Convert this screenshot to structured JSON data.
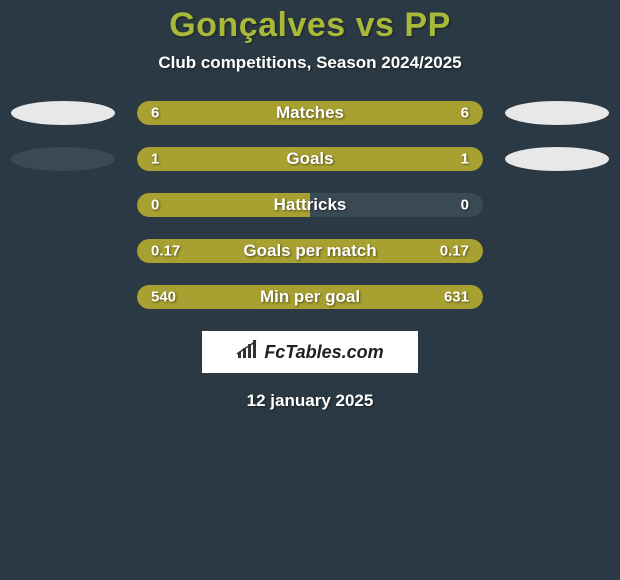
{
  "header": {
    "title": "Gonçalves vs PP",
    "subtitle": "Club competitions, Season 2024/2025"
  },
  "colors": {
    "background": "#2a3943",
    "accent": "#a8b838",
    "bar_fill": "#a8a030",
    "bar_track": "#3a4a54",
    "ellipse_light": "#e8e8e8",
    "ellipse_dark": "#3a4a54",
    "text": "#ffffff"
  },
  "rows": [
    {
      "label": "Matches",
      "left_value": "6",
      "right_value": "6",
      "left_pct": 50,
      "right_pct": 50,
      "left_ellipse": "light",
      "right_ellipse": "light"
    },
    {
      "label": "Goals",
      "left_value": "1",
      "right_value": "1",
      "left_pct": 50,
      "right_pct": 50,
      "left_ellipse": "dark",
      "right_ellipse": "light"
    },
    {
      "label": "Hattricks",
      "left_value": "0",
      "right_value": "0",
      "left_pct": 50,
      "right_pct": 0,
      "left_ellipse": null,
      "right_ellipse": null
    },
    {
      "label": "Goals per match",
      "left_value": "0.17",
      "right_value": "0.17",
      "left_pct": 50,
      "right_pct": 50,
      "left_ellipse": null,
      "right_ellipse": null
    },
    {
      "label": "Min per goal",
      "left_value": "540",
      "right_value": "631",
      "left_pct": 46,
      "right_pct": 54,
      "left_ellipse": null,
      "right_ellipse": null
    }
  ],
  "footer": {
    "logo_text": "FcTables.com",
    "date": "12 january 2025"
  }
}
